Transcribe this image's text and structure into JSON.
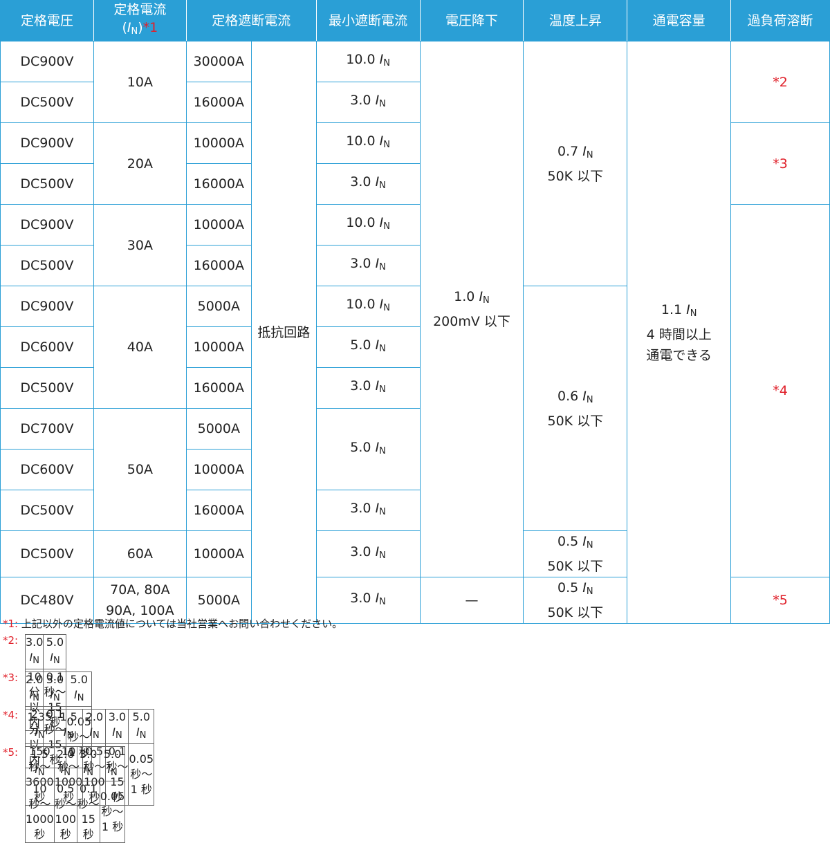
{
  "headers": {
    "voltage": "定格電圧",
    "current_line1": "定格電流",
    "current_line2_open": "(",
    "current_line2_I": "I",
    "current_line2_N": "N",
    "current_line2_close": ")",
    "current_note": "*1",
    "breaking": "定格遮断電流",
    "min_breaking": "最小遮断電流",
    "voltage_drop": "電圧降下",
    "temp_rise": "温度上昇",
    "capacity": "通電容量",
    "overload": "過負荷溶断"
  },
  "rows": [
    {
      "voltage": "DC900V",
      "breaking": "30000A",
      "min_val": "10.0"
    },
    {
      "voltage": "DC500V",
      "breaking": "16000A",
      "min_val": "3.0"
    },
    {
      "voltage": "DC900V",
      "breaking": "10000A",
      "min_val": "10.0"
    },
    {
      "voltage": "DC500V",
      "breaking": "16000A",
      "min_val": "3.0"
    },
    {
      "voltage": "DC900V",
      "breaking": "10000A",
      "min_val": "10.0"
    },
    {
      "voltage": "DC500V",
      "breaking": "16000A",
      "min_val": "3.0"
    },
    {
      "voltage": "DC900V",
      "breaking": "5000A",
      "min_val": "10.0"
    },
    {
      "voltage": "DC600V",
      "breaking": "10000A",
      "min_val": "5.0"
    },
    {
      "voltage": "DC500V",
      "breaking": "16000A",
      "min_val": "3.0"
    },
    {
      "voltage": "DC700V",
      "breaking": "5000A",
      "min_val": "5.0"
    },
    {
      "voltage": "DC600V",
      "breaking": "10000A"
    },
    {
      "voltage": "DC500V",
      "breaking": "16000A",
      "min_val": "3.0"
    },
    {
      "voltage": "DC500V",
      "breaking": "10000A",
      "min_val": "3.0"
    },
    {
      "voltage": "DC480V",
      "breaking": "5000A",
      "min_val": "3.0"
    }
  ],
  "current_groups": [
    "10A",
    "20A",
    "30A",
    "40A",
    "50A",
    "60A"
  ],
  "current_last_line1": "70A, 80A",
  "current_last_line2": "90A, 100A",
  "resistance_circuit": "抵抗回路",
  "voltage_drop": {
    "val": "1.0",
    "line2": "200mV 以下",
    "dash": "—"
  },
  "temp_rise": [
    {
      "val": "0.7",
      "line2": "50K 以下"
    },
    {
      "val": "0.6",
      "line2": "50K 以下"
    },
    {
      "val": "0.5",
      "line2": "50K 以下"
    },
    {
      "val": "0.5",
      "line2": "50K 以下"
    }
  ],
  "capacity": {
    "val": "1.1",
    "line2": "4 時間以上",
    "line3": "通電できる"
  },
  "overload_refs": [
    "*2",
    "*3",
    "*4",
    "*5"
  ],
  "symbol": {
    "I": "I",
    "N": "N"
  },
  "notes": {
    "n1_label": "*1:",
    "n1_text": "上記以外の定格電流値については当社営業へお問い合わせください。",
    "tables": [
      {
        "label": "*2:",
        "cells": [
          {
            "val": "3.0",
            "time": "10 分以内"
          },
          {
            "val": "5.0",
            "time": "0.1 秒〜 15 秒"
          }
        ]
      },
      {
        "label": "*3:",
        "cells": [
          {
            "val": "2.0",
            "time": "2 分以内"
          },
          {
            "val": "3.0",
            "time": "0.1 秒〜 15 秒"
          },
          {
            "val": "5.0",
            "time": "0.05 秒〜 1 秒"
          }
        ]
      },
      {
        "label": "*4:",
        "cells": [
          {
            "val": "1.35",
            "time": "150 秒〜 3600 秒"
          },
          {
            "val": "1.5",
            "time": "10 秒〜 1000 秒"
          },
          {
            "val": "2.0",
            "time": "0.5 秒〜 100 秒"
          },
          {
            "val": "3.0",
            "time": "0.1 秒〜 15 秒"
          },
          {
            "val": "5.0",
            "time": "0.05 秒〜 1 秒"
          }
        ]
      },
      {
        "label": "*5:",
        "cells": [
          {
            "val": "1.5",
            "time": "10 秒〜 1000 秒"
          },
          {
            "val": "2.0",
            "time": "0.5 秒〜 100 秒"
          },
          {
            "val": "3.0",
            "time": "0.1 秒〜 15 秒"
          },
          {
            "val": "5.0",
            "time": "0.05 秒〜 1 秒"
          }
        ]
      }
    ]
  }
}
